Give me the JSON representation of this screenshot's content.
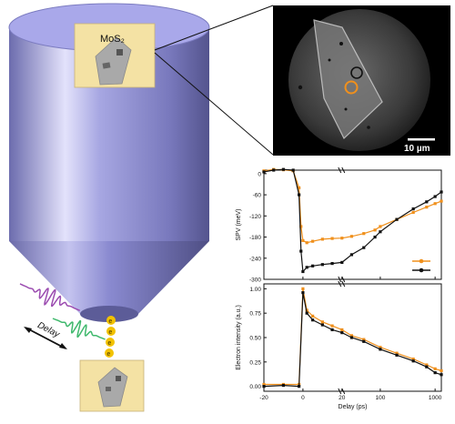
{
  "sample_label": "MoS₂",
  "delay_label": "Delay",
  "electron_glyph": "e",
  "scale_bar_label": "10 µm",
  "colors": {
    "cylinder_light": "#c9c8f3",
    "cylinder_mid": "#8f8fd6",
    "cylinder_dark": "#5b5b98",
    "sample_bg": "#f4e2a4",
    "flake": "#aaaaaa",
    "pulse_purple": "#9b4cb0",
    "pulse_green": "#3fb86c",
    "electron": "#f2c200",
    "orange": "#f0901c",
    "black": "#111111"
  },
  "chart_data": [
    {
      "type": "scatter",
      "ylabel": "SPV (meV)",
      "yticks": [
        0,
        -60,
        -120,
        -180,
        -240,
        -300
      ],
      "ylim": [
        -300,
        10
      ],
      "xlabel": "",
      "grid": false,
      "legend": "bottom-right",
      "series": [
        {
          "color": "#f0901c",
          "points": [
            [
              -20,
              8
            ],
            [
              -15,
              12
            ],
            [
              -10,
              11
            ],
            [
              -5,
              8
            ],
            [
              -2,
              -40
            ],
            [
              -1,
              -150
            ],
            [
              0,
              -190
            ],
            [
              2,
              -196
            ],
            [
              5,
              -192
            ],
            [
              10,
              -186
            ],
            [
              15,
              -184
            ],
            [
              20,
              -183
            ],
            [
              30,
              -178
            ],
            [
              50,
              -170
            ],
            [
              80,
              -160
            ],
            [
              100,
              -150
            ],
            [
              200,
              -130
            ],
            [
              400,
              -110
            ],
            [
              700,
              -95
            ],
            [
              1000,
              -85
            ],
            [
              1300,
              -78
            ]
          ]
        },
        {
          "color": "#111111",
          "points": [
            [
              -20,
              5
            ],
            [
              -15,
              10
            ],
            [
              -10,
              12
            ],
            [
              -5,
              10
            ],
            [
              -2,
              -60
            ],
            [
              -1,
              -220
            ],
            [
              0,
              -278
            ],
            [
              2,
              -266
            ],
            [
              5,
              -262
            ],
            [
              10,
              -258
            ],
            [
              15,
              -255
            ],
            [
              20,
              -252
            ],
            [
              30,
              -230
            ],
            [
              50,
              -210
            ],
            [
              80,
              -180
            ],
            [
              100,
              -165
            ],
            [
              200,
              -130
            ],
            [
              400,
              -100
            ],
            [
              700,
              -80
            ],
            [
              1000,
              -65
            ],
            [
              1300,
              -52
            ]
          ]
        }
      ]
    },
    {
      "type": "scatter",
      "ylabel": "Electron intensity (a.u.)",
      "xlabel": "Delay (ps)",
      "yticks": [
        0.0,
        0.25,
        0.5,
        0.75,
        1.0
      ],
      "xticks": [
        "-20",
        "0",
        "20",
        "100",
        "1000"
      ],
      "ylim": [
        -0.05,
        1.05
      ],
      "grid": false,
      "series": [
        {
          "color": "#f0901c",
          "points": [
            [
              -20,
              0.02
            ],
            [
              -10,
              0.02
            ],
            [
              -2,
              0.02
            ],
            [
              0,
              1.0
            ],
            [
              2,
              0.78
            ],
            [
              5,
              0.72
            ],
            [
              10,
              0.66
            ],
            [
              15,
              0.62
            ],
            [
              20,
              0.58
            ],
            [
              30,
              0.52
            ],
            [
              50,
              0.48
            ],
            [
              100,
              0.4
            ],
            [
              200,
              0.34
            ],
            [
              400,
              0.28
            ],
            [
              700,
              0.22
            ],
            [
              1000,
              0.18
            ],
            [
              1300,
              0.16
            ]
          ]
        },
        {
          "color": "#111111",
          "points": [
            [
              -20,
              0.0
            ],
            [
              -10,
              0.01
            ],
            [
              -2,
              0.0
            ],
            [
              0,
              0.96
            ],
            [
              2,
              0.75
            ],
            [
              5,
              0.68
            ],
            [
              10,
              0.63
            ],
            [
              15,
              0.58
            ],
            [
              20,
              0.55
            ],
            [
              30,
              0.5
            ],
            [
              50,
              0.46
            ],
            [
              100,
              0.38
            ],
            [
              200,
              0.32
            ],
            [
              400,
              0.26
            ],
            [
              700,
              0.2
            ],
            [
              1000,
              0.14
            ],
            [
              1300,
              0.12
            ]
          ]
        }
      ]
    }
  ]
}
